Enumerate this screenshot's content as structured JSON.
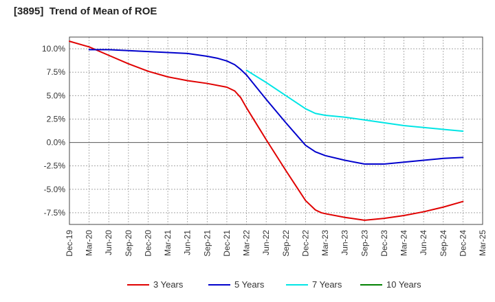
{
  "chart_data": {
    "type": "line",
    "title": "[3895]  Trend of Mean of ROE",
    "xlabel": "",
    "ylabel": "",
    "ylim": [
      -8.75,
      11.25
    ],
    "y_ticks": [
      10.0,
      7.5,
      5.0,
      2.5,
      0.0,
      -2.5,
      -5.0,
      -7.5
    ],
    "y_tick_labels": [
      "10.0%",
      "7.5%",
      "5.0%",
      "2.5%",
      "0.0%",
      "-2.5%",
      "-5.0%",
      "-7.5%"
    ],
    "x_tick_labels": [
      "Dec-19",
      "Mar-20",
      "Jun-20",
      "Sep-20",
      "Dec-20",
      "Mar-21",
      "Jun-21",
      "Sep-21",
      "Dec-21",
      "Mar-22",
      "Jun-22",
      "Sep-22",
      "Dec-22",
      "Mar-23",
      "Jun-23",
      "Sep-23",
      "Dec-23",
      "Mar-24",
      "Jun-24",
      "Sep-24",
      "Dec-24",
      "Mar-25"
    ],
    "grid": true,
    "legend_position": "bottom",
    "series": [
      {
        "name": "3 Years",
        "color": "#e00000",
        "x_index": [
          0,
          1,
          2,
          3,
          4,
          5,
          6,
          7,
          8,
          8.4,
          8.7,
          9,
          10,
          11,
          12,
          12.5,
          12.8,
          13,
          14,
          15,
          16,
          17,
          18,
          19,
          20
        ],
        "values": [
          10.8,
          10.2,
          9.3,
          8.4,
          7.6,
          7.0,
          6.6,
          6.3,
          5.9,
          5.5,
          4.8,
          3.7,
          0.3,
          -3.0,
          -6.2,
          -7.2,
          -7.5,
          -7.6,
          -8.0,
          -8.3,
          -8.1,
          -7.8,
          -7.4,
          -6.9,
          -6.3
        ]
      },
      {
        "name": "5 Years",
        "color": "#0000cc",
        "x_index": [
          1,
          2,
          3,
          4,
          5,
          6,
          7,
          7.5,
          8,
          8.4,
          8.7,
          9,
          10,
          11,
          12,
          12.5,
          13,
          14,
          15,
          16,
          17,
          18,
          19,
          20
        ],
        "values": [
          9.9,
          9.9,
          9.8,
          9.7,
          9.6,
          9.5,
          9.2,
          9.0,
          8.7,
          8.3,
          7.8,
          7.2,
          4.6,
          2.1,
          -0.3,
          -1.0,
          -1.4,
          -1.9,
          -2.3,
          -2.3,
          -2.1,
          -1.9,
          -1.7,
          -1.6
        ]
      },
      {
        "name": "7 Years",
        "color": "#00e5e5",
        "x_index": [
          9,
          10,
          11,
          12,
          12.5,
          13,
          14,
          15,
          16,
          17,
          18,
          19,
          20
        ],
        "values": [
          7.7,
          6.4,
          5.0,
          3.6,
          3.1,
          2.9,
          2.7,
          2.4,
          2.1,
          1.8,
          1.6,
          1.4,
          1.2
        ]
      },
      {
        "name": "10 Years",
        "color": "#008000",
        "x_index": [],
        "values": []
      }
    ]
  }
}
